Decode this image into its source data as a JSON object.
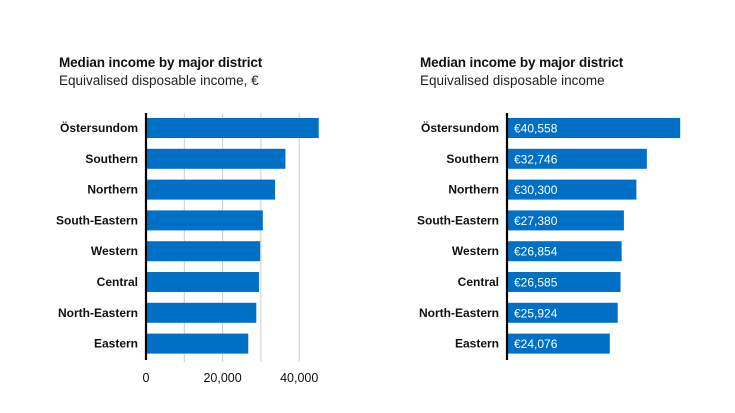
{
  "colors": {
    "bar": "#0070c6",
    "axis": "#000000",
    "grid": "#cccccc"
  },
  "chart_data": [
    {
      "type": "bar",
      "orientation": "horizontal",
      "title": "Median income by major district",
      "subtitle": "Equivalised disposable income, €",
      "xlabel": "",
      "ylabel": "",
      "categories": [
        "Östersundom",
        "Southern",
        "Northern",
        "South-Eastern",
        "Western",
        "Central",
        "North-Eastern",
        "Eastern"
      ],
      "values": [
        45100,
        36400,
        33700,
        30500,
        29800,
        29500,
        28800,
        26700
      ],
      "xlim": [
        0,
        50000
      ],
      "grid_step": 10000,
      "grid": true,
      "x_ticks": [
        0,
        20000,
        40000
      ],
      "x_tick_labels": [
        "0",
        "20,000",
        "40,000"
      ],
      "data_labels": false
    },
    {
      "type": "bar",
      "orientation": "horizontal",
      "title": "Median income by major district",
      "subtitle": "Equivalised disposable income",
      "xlabel": "",
      "ylabel": "",
      "categories": [
        "Östersundom",
        "Southern",
        "Northern",
        "South-Eastern",
        "Western",
        "Central",
        "North-Eastern",
        "Eastern"
      ],
      "values": [
        40558,
        32746,
        30300,
        27380,
        26854,
        26585,
        25924,
        24076
      ],
      "value_labels": [
        "€40,558",
        "€32,746",
        "€30,300",
        "€27,380",
        "€26,854",
        "€26,585",
        "€25,924",
        "€24,076"
      ],
      "grid": false,
      "x_ticks": [],
      "data_labels": true
    }
  ]
}
